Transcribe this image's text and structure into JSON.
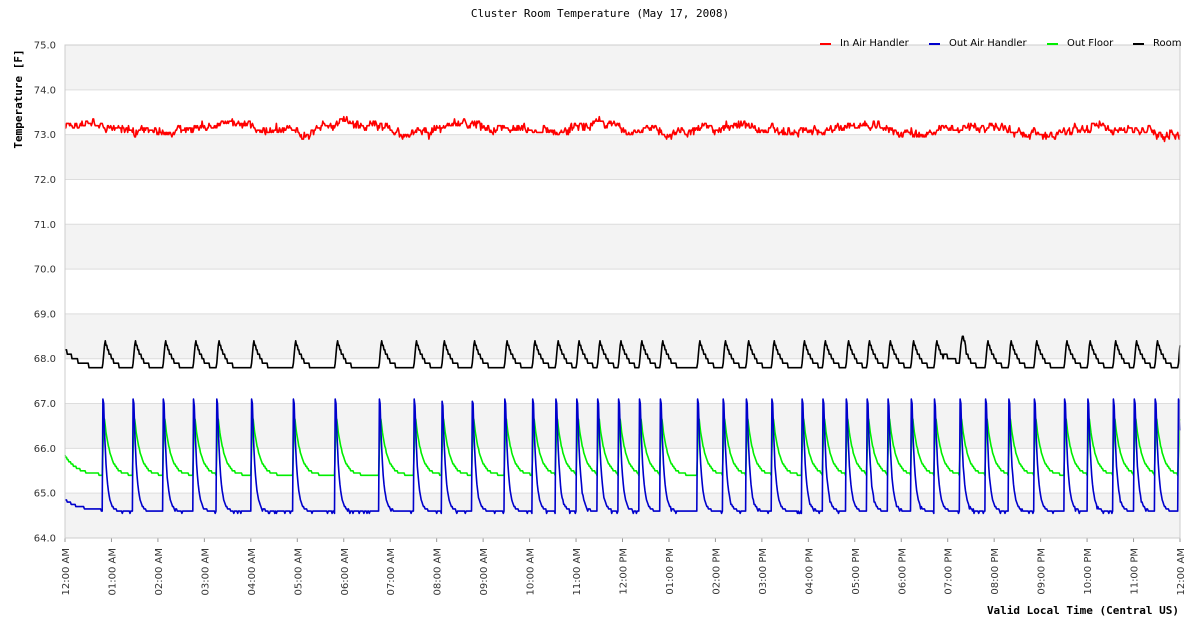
{
  "chart_data": {
    "type": "line",
    "title": "Cluster Room Temperature (May 17, 2008)",
    "xlabel": "Valid Local Time (Central US)",
    "ylabel": "Temperature [F]",
    "ylim": [
      64.0,
      75.0
    ],
    "yticks": [
      "64.0",
      "65.0",
      "66.0",
      "67.0",
      "68.0",
      "69.0",
      "70.0",
      "71.0",
      "72.0",
      "73.0",
      "74.0",
      "75.0"
    ],
    "xlim_hours": [
      0,
      24
    ],
    "xticks": [
      "12:00 AM",
      "01:00 AM",
      "02:00 AM",
      "03:00 AM",
      "04:00 AM",
      "05:00 AM",
      "06:00 AM",
      "07:00 AM",
      "08:00 AM",
      "09:00 AM",
      "10:00 AM",
      "11:00 AM",
      "12:00 PM",
      "01:00 PM",
      "02:00 PM",
      "03:00 PM",
      "04:00 PM",
      "05:00 PM",
      "06:00 PM",
      "07:00 PM",
      "08:00 PM",
      "09:00 PM",
      "10:00 PM",
      "11:00 PM",
      "12:00 AM"
    ],
    "grid": true,
    "legend_position": "top-right",
    "series": [
      {
        "name": "In Air Handler",
        "color": "#ff0000",
        "baseline": 73.15,
        "variation": 0.2
      },
      {
        "name": "Out Air Handler",
        "color": "#0000cc",
        "min": 64.6,
        "peak": 67.6
      },
      {
        "name": "Out Floor",
        "color": "#00ee00",
        "min": 65.4,
        "peak": 66.75
      },
      {
        "name": "Room",
        "color": "#000000",
        "min": 67.75,
        "peak": 68.4
      }
    ],
    "cycle_starts_hours": [
      0.8,
      1.45,
      2.1,
      2.75,
      3.25,
      4.0,
      4.9,
      5.8,
      6.75,
      7.5,
      8.1,
      8.75,
      9.45,
      10.05,
      10.55,
      11.0,
      11.45,
      11.9,
      12.35,
      12.8,
      13.6,
      14.15,
      14.65,
      15.2,
      15.85,
      16.3,
      16.8,
      17.25,
      17.7,
      18.2,
      18.7,
      19.25,
      19.8,
      20.3,
      20.85,
      21.5,
      22.0,
      22.55,
      23.0,
      23.45,
      23.95
    ]
  }
}
